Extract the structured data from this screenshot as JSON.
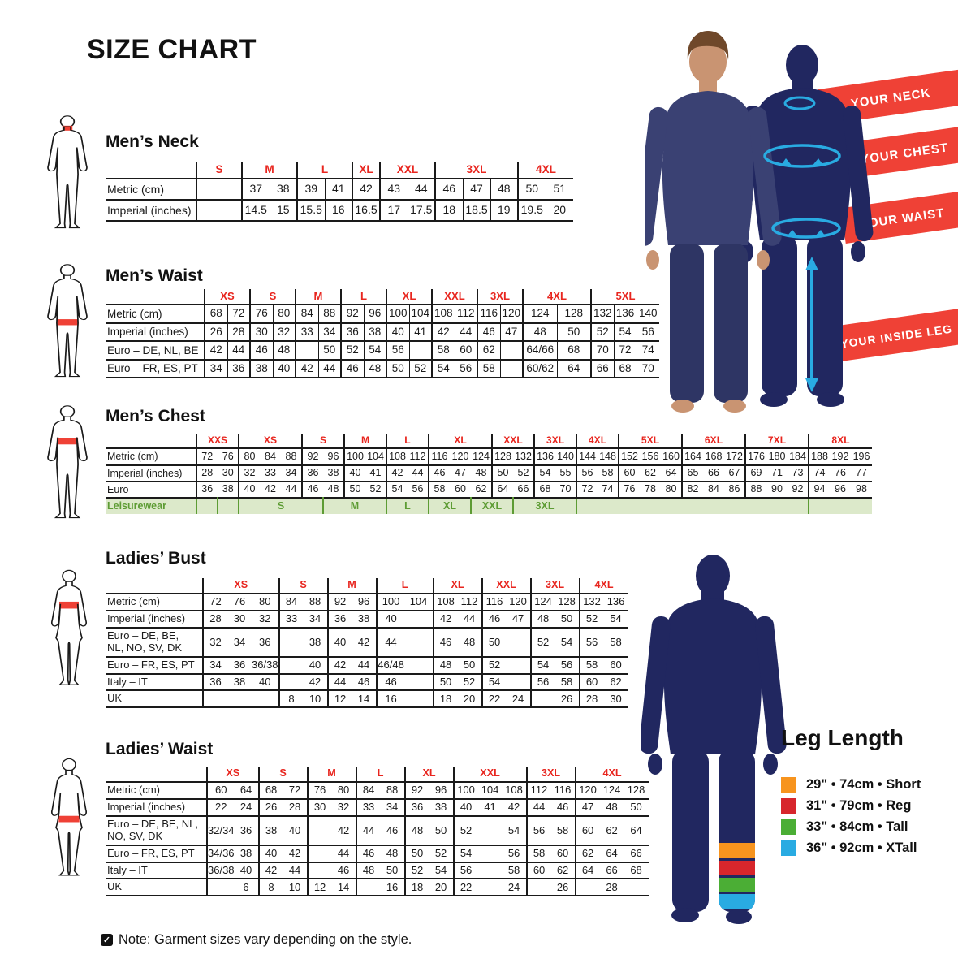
{
  "page": {
    "title": "SIZE CHART"
  },
  "note": {
    "text": "Note: Garment sizes vary depending on the style."
  },
  "banners": [
    "YOUR NECK",
    "YOUR CHEST",
    "YOUR WAIST",
    "YOUR INSIDE LEG"
  ],
  "leg_length": {
    "title": "Leg Length",
    "items": [
      {
        "color": "#F7941E",
        "label": "29\" • 74cm • Short"
      },
      {
        "color": "#D7262C",
        "label": "31\" • 79cm • Reg"
      },
      {
        "color": "#4BAE35",
        "label": "33\" • 84cm • Tall"
      },
      {
        "color": "#29ABE2",
        "label": "36\" • 92cm • XTall"
      }
    ]
  },
  "tables": [
    {
      "id": "mens-neck",
      "title": "Men’s Neck",
      "sizes": [
        {
          "label": "S",
          "span": 1
        },
        {
          "label": "M",
          "span": 2
        },
        {
          "label": "L",
          "span": 2
        },
        {
          "label": "XL",
          "span": 1
        },
        {
          "label": "XXL",
          "span": 2
        },
        {
          "label": "3XL",
          "span": 3
        },
        {
          "label": "4XL",
          "span": 2
        }
      ],
      "rows": [
        {
          "label": "Metric (cm)",
          "values": [
            "",
            "37",
            "38",
            "39",
            "41",
            "42",
            "43",
            "44",
            "46",
            "47",
            "48",
            "50",
            "51"
          ]
        },
        {
          "label": "Imperial (inches)",
          "values": [
            "",
            "14.5",
            "15",
            "15.5",
            "16",
            "16.5",
            "17",
            "17.5",
            "18",
            "18.5",
            "19",
            "19.5",
            "20"
          ]
        }
      ]
    },
    {
      "id": "mens-waist",
      "title": "Men’s Waist",
      "sizes": [
        {
          "label": "XS",
          "span": 2
        },
        {
          "label": "S",
          "span": 2
        },
        {
          "label": "M",
          "span": 2
        },
        {
          "label": "L",
          "span": 2
        },
        {
          "label": "XL",
          "span": 2
        },
        {
          "label": "XXL",
          "span": 2
        },
        {
          "label": "3XL",
          "span": 2
        },
        {
          "label": "4XL",
          "span": 2
        },
        {
          "label": "5XL",
          "span": 3
        }
      ],
      "rows": [
        {
          "label": "Metric (cm)",
          "values": [
            "68",
            "72",
            "76",
            "80",
            "84",
            "88",
            "92",
            "96",
            "100",
            "104",
            "108",
            "112",
            "116",
            "120",
            "124",
            "128",
            "132",
            "136",
            "140"
          ]
        },
        {
          "label": "Imperial (inches)",
          "values": [
            "26",
            "28",
            "30",
            "32",
            "33",
            "34",
            "36",
            "38",
            "40",
            "41",
            "42",
            "44",
            "46",
            "47",
            "48",
            "50",
            "52",
            "54",
            "56"
          ]
        },
        {
          "label": "Euro – DE, NL, BE",
          "values": [
            "42",
            "44",
            "46",
            "48",
            "",
            "50",
            "52",
            "54",
            "56",
            "",
            "58",
            "60",
            "62",
            "",
            "64/66",
            "68",
            "70",
            "72",
            "74"
          ]
        },
        {
          "label": "Euro – FR, ES, PT",
          "values": [
            "34",
            "36",
            "38",
            "40",
            "42",
            "44",
            "46",
            "48",
            "50",
            "52",
            "54",
            "56",
            "58",
            "",
            "60/62",
            "64",
            "66",
            "68",
            "70"
          ]
        }
      ]
    },
    {
      "id": "mens-chest",
      "title": "Men’s Chest",
      "sizes": [
        {
          "label": "XXS",
          "span": 2
        },
        {
          "label": "XS",
          "span": 3
        },
        {
          "label": "S",
          "span": 2
        },
        {
          "label": "M",
          "span": 2
        },
        {
          "label": "L",
          "span": 2
        },
        {
          "label": "XL",
          "span": 3
        },
        {
          "label": "XXL",
          "span": 2
        },
        {
          "label": "3XL",
          "span": 2
        },
        {
          "label": "4XL",
          "span": 2
        },
        {
          "label": "5XL",
          "span": 3
        },
        {
          "label": "6XL",
          "span": 3
        },
        {
          "label": "7XL",
          "span": 3
        },
        {
          "label": "8XL",
          "span": 3
        }
      ],
      "rows": [
        {
          "label": "Metric (cm)",
          "values": [
            "72",
            "76",
            "80",
            "84",
            "88",
            "92",
            "96",
            "100",
            "104",
            "108",
            "112",
            "116",
            "120",
            "124",
            "128",
            "132",
            "136",
            "140",
            "144",
            "148",
            "152",
            "156",
            "160",
            "164",
            "168",
            "172",
            "176",
            "180",
            "184",
            "188",
            "192",
            "196"
          ]
        },
        {
          "label": "Imperial (inches)",
          "values": [
            "28",
            "30",
            "32",
            "33",
            "34",
            "36",
            "38",
            "40",
            "41",
            "42",
            "44",
            "46",
            "47",
            "48",
            "50",
            "52",
            "54",
            "55",
            "56",
            "58",
            "60",
            "62",
            "64",
            "65",
            "66",
            "67",
            "69",
            "71",
            "73",
            "74",
            "76",
            "77"
          ]
        },
        {
          "label": "Euro",
          "values": [
            "36",
            "38",
            "40",
            "42",
            "44",
            "46",
            "48",
            "50",
            "52",
            "54",
            "56",
            "58",
            "60",
            "62",
            "64",
            "66",
            "68",
            "70",
            "72",
            "74",
            "76",
            "78",
            "80",
            "82",
            "84",
            "86",
            "88",
            "90",
            "92",
            "94",
            "96",
            "98"
          ]
        },
        {
          "label": "Leisurewear",
          "cells": [
            {
              "label": "",
              "span": 1
            },
            {
              "label": "",
              "span": 1
            },
            {
              "label": "S",
              "span": 4
            },
            {
              "label": "M",
              "span": 3
            },
            {
              "label": "L",
              "span": 2
            },
            {
              "label": "XL",
              "span": 2
            },
            {
              "label": "XXL",
              "span": 2
            },
            {
              "label": "3XL",
              "span": 3
            },
            {
              "label": "",
              "span": 11
            },
            {
              "label": "",
              "span": 3
            }
          ]
        }
      ]
    },
    {
      "id": "ladies-bust",
      "title": "Ladies’ Bust",
      "sizes": [
        {
          "label": "XS",
          "span": 3
        },
        {
          "label": "S",
          "span": 2
        },
        {
          "label": "M",
          "span": 2
        },
        {
          "label": "L",
          "span": 2
        },
        {
          "label": "XL",
          "span": 2
        },
        {
          "label": "XXL",
          "span": 2
        },
        {
          "label": "3XL",
          "span": 2
        },
        {
          "label": "4XL",
          "span": 2
        }
      ],
      "rows": [
        {
          "label": "Metric (cm)",
          "values": [
            "72",
            "76",
            "80",
            "84",
            "88",
            "92",
            "96",
            "100",
            "104",
            "108",
            "112",
            "116",
            "120",
            "124",
            "128",
            "132",
            "136"
          ]
        },
        {
          "label": "Imperial (inches)",
          "values": [
            "28",
            "30",
            "32",
            "33",
            "34",
            "36",
            "38",
            "40",
            "",
            "42",
            "44",
            "46",
            "47",
            "48",
            "50",
            "52",
            "54"
          ]
        },
        {
          "label": "Euro –  DE, BE,\nNL, NO, SV, DK",
          "values": [
            "32",
            "34",
            "36",
            "",
            "38",
            "40",
            "42",
            "44",
            "",
            "46",
            "48",
            "50",
            "",
            "52",
            "54",
            "56",
            "58"
          ]
        },
        {
          "label": "Euro – FR, ES, PT",
          "values": [
            "34",
            "36",
            "36/38",
            "",
            "40",
            "42",
            "44",
            "46/48",
            "",
            "48",
            "50",
            "52",
            "",
            "54",
            "56",
            "58",
            "60"
          ]
        },
        {
          "label": "Italy – IT",
          "values": [
            "36",
            "38",
            "40",
            "",
            "42",
            "44",
            "46",
            "46",
            "",
            "50",
            "52",
            "54",
            "",
            "56",
            "58",
            "60",
            "62"
          ]
        },
        {
          "label": "UK",
          "values": [
            "",
            "",
            "",
            "8",
            "10",
            "12",
            "14",
            "16",
            "",
            "18",
            "20",
            "22",
            "24",
            "",
            "26",
            "28",
            "30"
          ]
        }
      ]
    },
    {
      "id": "ladies-waist",
      "title": "Ladies’ Waist",
      "sizes": [
        {
          "label": "XS",
          "span": 2
        },
        {
          "label": "S",
          "span": 2
        },
        {
          "label": "M",
          "span": 2
        },
        {
          "label": "L",
          "span": 2
        },
        {
          "label": "XL",
          "span": 2
        },
        {
          "label": "XXL",
          "span": 3
        },
        {
          "label": "3XL",
          "span": 2
        },
        {
          "label": "4XL",
          "span": 3
        }
      ],
      "rows": [
        {
          "label": "Metric (cm)",
          "values": [
            "60",
            "64",
            "68",
            "72",
            "76",
            "80",
            "84",
            "88",
            "92",
            "96",
            "100",
            "104",
            "108",
            "112",
            "116",
            "120",
            "124",
            "128"
          ]
        },
        {
          "label": "Imperial (inches)",
          "values": [
            "22",
            "24",
            "26",
            "28",
            "30",
            "32",
            "33",
            "34",
            "36",
            "38",
            "40",
            "41",
            "42",
            "44",
            "46",
            "47",
            "48",
            "50"
          ]
        },
        {
          "label": "Euro – DE, BE, NL,\nNO, SV, DK",
          "values": [
            "32/34",
            "36",
            "38",
            "40",
            "",
            "42",
            "44",
            "46",
            "48",
            "50",
            "52",
            "",
            "54",
            "56",
            "58",
            "60",
            "62",
            "64"
          ]
        },
        {
          "label": "Euro – FR, ES, PT",
          "values": [
            "34/36",
            "38",
            "40",
            "42",
            "",
            "44",
            "46",
            "48",
            "50",
            "52",
            "54",
            "",
            "56",
            "58",
            "60",
            "62",
            "64",
            "66"
          ]
        },
        {
          "label": "Italy – IT",
          "values": [
            "36/38",
            "40",
            "42",
            "44",
            "",
            "46",
            "48",
            "50",
            "52",
            "54",
            "56",
            "",
            "58",
            "60",
            "62",
            "64",
            "66",
            "68"
          ]
        },
        {
          "label": "UK",
          "values": [
            "",
            "6",
            "8",
            "10",
            "12",
            "14",
            "",
            "16",
            "18",
            "20",
            "22",
            "",
            "24",
            "",
            "26",
            "",
            "28",
            ""
          ]
        }
      ]
    }
  ]
}
